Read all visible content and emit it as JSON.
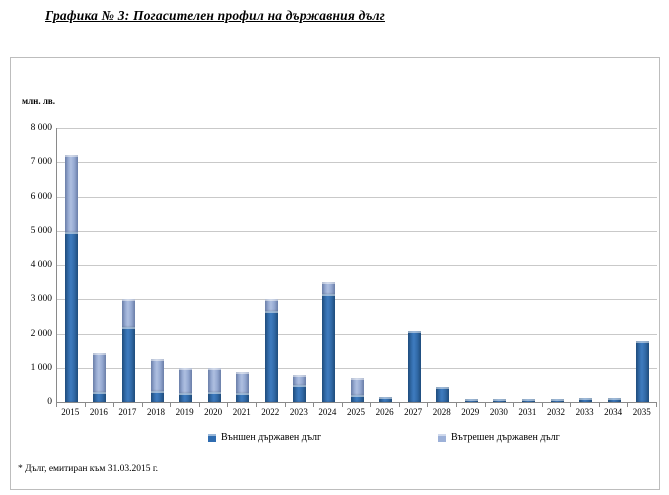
{
  "title": "Графика № 3: Погасителен профил на държавния дълг",
  "footnote": "* Дълг, емитиран към 31.03.2015 г.",
  "chart_data": {
    "type": "bar",
    "stacked": true,
    "title": "Графика № 3: Погасителен профил на държавния дълг",
    "ylabel": "млн. лв.",
    "xlabel": "",
    "ylim": [
      0,
      8000
    ],
    "ytick_step": 1000,
    "grid": true,
    "legend_position": "bottom",
    "categories": [
      "2015",
      "2016",
      "2017",
      "2018",
      "2019",
      "2020",
      "2021",
      "2022",
      "2023",
      "2024",
      "2025",
      "2026",
      "2027",
      "2028",
      "2029",
      "2030",
      "2031",
      "2032",
      "2033",
      "2034",
      "2035"
    ],
    "series": [
      {
        "name": "Външен държавен дълг",
        "color": "#2f6cb0",
        "values": [
          4950,
          300,
          2200,
          330,
          250,
          300,
          250,
          2650,
          500,
          3150,
          200,
          150,
          2080,
          450,
          100,
          100,
          100,
          100,
          110,
          110,
          1780
        ]
      },
      {
        "name": "Вътрешен държавен дълг",
        "color": "#93a9d4",
        "values": [
          2250,
          1130,
          800,
          920,
          750,
          700,
          620,
          350,
          300,
          350,
          500,
          0,
          0,
          0,
          0,
          0,
          0,
          0,
          0,
          0,
          0
        ]
      }
    ]
  }
}
